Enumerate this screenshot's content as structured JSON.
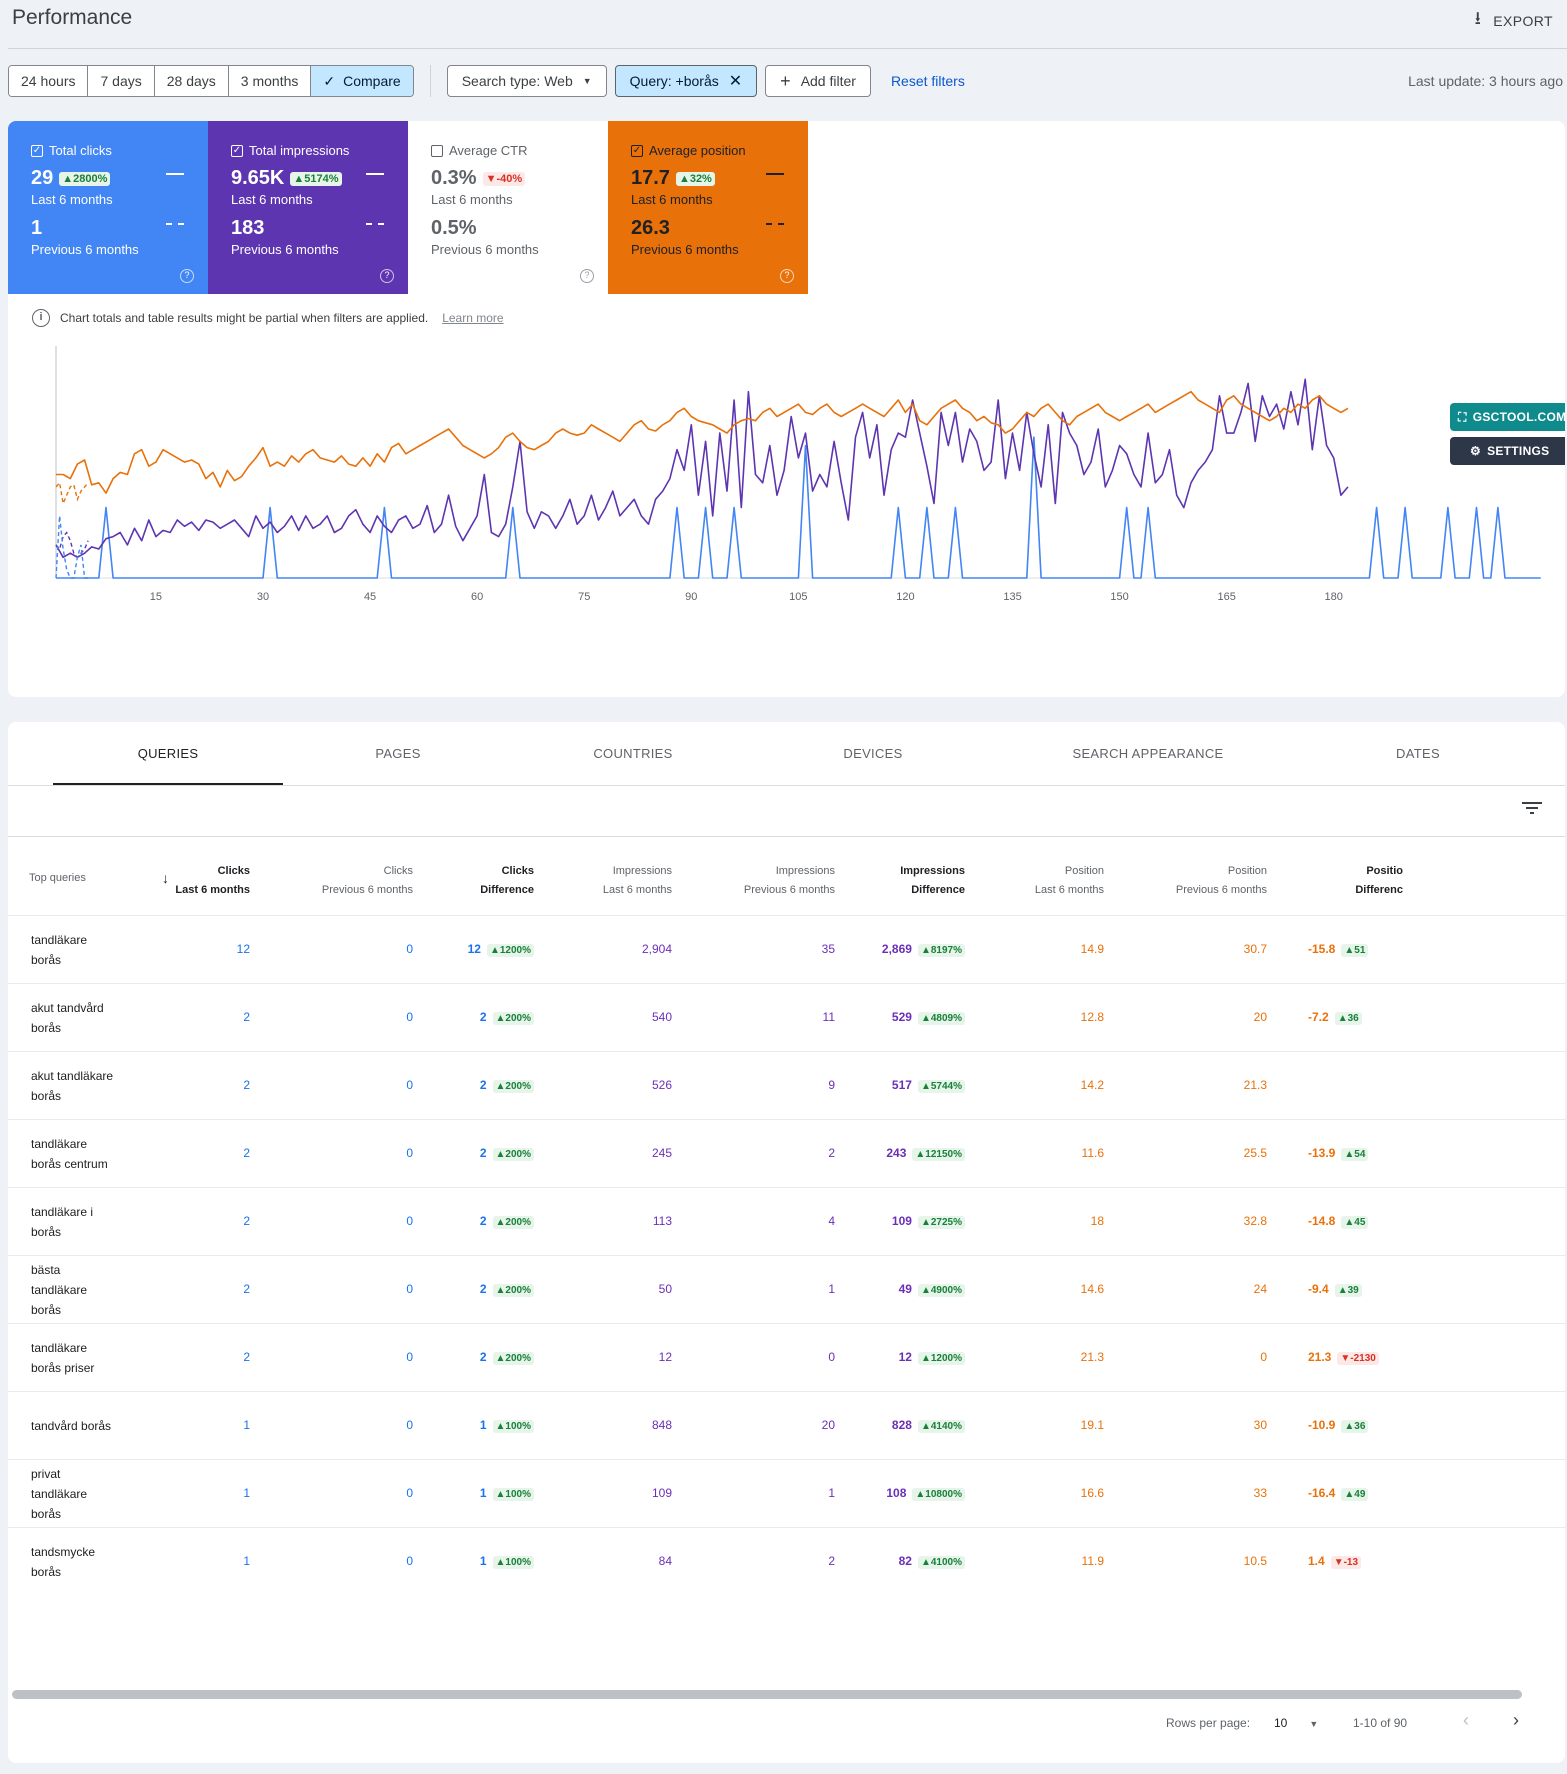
{
  "header": {
    "title": "Performance",
    "export_label": "EXPORT"
  },
  "filters": {
    "ranges": [
      "24 hours",
      "7 days",
      "28 days",
      "3 months"
    ],
    "compare_label": "Compare",
    "search_type": "Search type: Web",
    "query_chip": "Query: +borås",
    "add_filter": "Add filter",
    "reset": "Reset filters",
    "last_update": "Last update: 3 hours ago"
  },
  "metrics": {
    "clicks": {
      "label": "Total clicks",
      "value": "29",
      "change": "▲2800%",
      "period": "Last 6 months",
      "prev_value": "1",
      "prev_period": "Previous 6 months",
      "color": "#4285f4"
    },
    "impressions": {
      "label": "Total impressions",
      "value": "9.65K",
      "change": "▲5174%",
      "period": "Last 6 months",
      "prev_value": "183",
      "prev_period": "Previous 6 months",
      "color": "#5e35b1"
    },
    "ctr": {
      "label": "Average CTR",
      "value": "0.3%",
      "change": "▼-40%",
      "period": "Last 6 months",
      "prev_value": "0.5%",
      "prev_period": "Previous 6 months"
    },
    "position": {
      "label": "Average position",
      "value": "17.7",
      "change": "▲32%",
      "period": "Last 6 months",
      "prev_value": "26.3",
      "prev_period": "Previous 6 months",
      "color": "#e8710a"
    }
  },
  "notice": {
    "text": "Chart totals and table results might be partial when filters are applied.",
    "link": "Learn more"
  },
  "overlay": {
    "gsctool": "GSCTOOL.COM",
    "settings": "SETTINGS"
  },
  "chart_data": {
    "type": "line",
    "x_ticks": [
      "15",
      "30",
      "45",
      "60",
      "75",
      "90",
      "105",
      "120",
      "135",
      "150",
      "165",
      "180"
    ],
    "x_range": [
      1,
      182
    ],
    "grid": false,
    "series": [
      {
        "key": "position",
        "color": "#e8710a",
        "values": [
          50,
          50,
          48,
          55,
          57,
          45,
          46,
          41,
          48,
          51,
          50,
          60,
          62,
          54,
          56,
          62,
          60,
          58,
          56,
          57,
          55,
          48,
          51,
          44,
          52,
          47,
          49,
          54,
          58,
          63,
          54,
          56,
          54,
          59,
          56,
          60,
          62,
          58,
          57,
          56,
          59,
          55,
          54,
          58,
          54,
          60,
          56,
          63,
          65,
          60,
          62,
          64,
          66,
          68,
          70,
          72,
          68,
          64,
          62,
          60,
          58,
          60,
          63,
          68,
          70,
          66,
          63,
          62,
          64,
          66,
          70,
          72,
          70,
          69,
          70,
          74,
          72,
          70,
          68,
          66,
          70,
          74,
          76,
          72,
          71,
          74,
          76,
          80,
          82,
          78,
          76,
          75,
          74,
          72,
          70,
          74,
          76,
          77,
          76,
          80,
          82,
          78,
          80,
          82,
          84,
          80,
          79,
          82,
          84,
          80,
          78,
          80,
          82,
          84,
          82,
          80,
          78,
          82,
          86,
          80,
          84,
          76,
          74,
          78,
          82,
          84,
          86,
          82,
          80,
          76,
          78,
          75,
          74,
          70,
          72,
          76,
          80,
          78,
          82,
          84,
          80,
          76,
          74,
          78,
          80,
          82,
          84,
          80,
          78,
          76,
          78,
          80,
          82,
          84,
          80,
          82,
          84,
          86,
          88,
          90,
          86,
          84,
          82,
          80,
          86,
          88,
          84,
          82,
          80,
          78,
          76,
          78,
          82,
          80,
          84,
          82,
          86,
          88,
          84,
          82,
          80,
          82
        ]
      },
      {
        "key": "impressions",
        "color": "#5e35b1",
        "values": [
          16,
          10,
          12,
          10,
          12,
          15,
          14,
          19,
          20,
          22,
          16,
          24,
          18,
          28,
          20,
          23,
          22,
          28,
          25,
          27,
          23,
          28,
          27,
          24,
          26,
          28,
          24,
          20,
          30,
          24,
          27,
          22,
          25,
          30,
          23,
          30,
          24,
          26,
          30,
          22,
          24,
          30,
          33,
          26,
          22,
          30,
          25,
          22,
          28,
          30,
          24,
          26,
          35,
          22,
          26,
          40,
          25,
          18,
          24,
          30,
          50,
          22,
          20,
          26,
          44,
          66,
          32,
          24,
          32,
          30,
          24,
          30,
          38,
          26,
          30,
          40,
          28,
          34,
          42,
          30,
          34,
          38,
          30,
          26,
          38,
          42,
          48,
          62,
          52,
          74,
          40,
          66,
          30,
          70,
          42,
          86,
          34,
          90,
          50,
          46,
          64,
          40,
          52,
          78,
          58,
          70,
          42,
          50,
          44,
          66,
          46,
          28,
          68,
          80,
          58,
          74,
          40,
          62,
          70,
          68,
          86,
          70,
          54,
          36,
          80,
          64,
          80,
          56,
          72,
          66,
          52,
          56,
          86,
          48,
          70,
          52,
          80,
          60,
          44,
          74,
          36,
          80,
          70,
          64,
          50,
          56,
          72,
          44,
          52,
          64,
          60,
          50,
          44,
          70,
          46,
          50,
          62,
          40,
          34,
          46,
          52,
          56,
          62,
          88,
          70,
          70,
          80,
          94,
          66,
          88,
          78,
          84,
          72,
          90,
          74,
          96,
          62,
          88,
          64,
          58,
          40,
          44
        ]
      },
      {
        "key": "clicks",
        "color": "#4285f4",
        "values": [
          0,
          0,
          0,
          0,
          0,
          0,
          0,
          34,
          0,
          0,
          0,
          0,
          0,
          0,
          0,
          0,
          0,
          0,
          0,
          0,
          0,
          0,
          0,
          0,
          0,
          0,
          0,
          0,
          0,
          0,
          34,
          0,
          0,
          0,
          0,
          0,
          0,
          0,
          0,
          0,
          0,
          0,
          0,
          0,
          0,
          0,
          34,
          0,
          0,
          0,
          0,
          0,
          0,
          0,
          0,
          0,
          0,
          0,
          0,
          0,
          0,
          0,
          0,
          0,
          34,
          0,
          0,
          0,
          0,
          0,
          0,
          0,
          0,
          0,
          0,
          0,
          0,
          0,
          0,
          0,
          0,
          0,
          0,
          0,
          0,
          0,
          0,
          34,
          0,
          0,
          0,
          34,
          0,
          0,
          0,
          34,
          0,
          0,
          0,
          0,
          0,
          0,
          0,
          0,
          0,
          64,
          0,
          0,
          0,
          0,
          0,
          0,
          0,
          0,
          0,
          0,
          0,
          0,
          34,
          0,
          0,
          0,
          34,
          0,
          0,
          0,
          34,
          0,
          0,
          0,
          0,
          0,
          0,
          0,
          0,
          0,
          0,
          68,
          0,
          0,
          0,
          0,
          0,
          0,
          0,
          0,
          0,
          0,
          0,
          0,
          34,
          0,
          0,
          34,
          0,
          0,
          0,
          0,
          0,
          0,
          0,
          0,
          0,
          0,
          0,
          0,
          0,
          0,
          0,
          0,
          0,
          0,
          0,
          0,
          0,
          0,
          0,
          0,
          0,
          0,
          0,
          0,
          0,
          0,
          0,
          34,
          0,
          0,
          0,
          34,
          0,
          0,
          0,
          0,
          0,
          34,
          0,
          0,
          0,
          34,
          0,
          0,
          34,
          0,
          0,
          0,
          0,
          0,
          0
        ]
      }
    ],
    "prev_series_note": "",
    "unit_y": ""
  },
  "tabs": [
    "QUERIES",
    "PAGES",
    "COUNTRIES",
    "DEVICES",
    "SEARCH APPEARANCE",
    "DATES"
  ],
  "table": {
    "headers": [
      {
        "l1": "Top queries",
        "l2": ""
      },
      {
        "l1": "Clicks",
        "l2": "Last 6 months"
      },
      {
        "l1": "Clicks",
        "l2": "Previous 6 months"
      },
      {
        "l1": "Clicks",
        "l2": "Difference"
      },
      {
        "l1": "Impressions",
        "l2": "Last 6 months"
      },
      {
        "l1": "Impressions",
        "l2": "Previous 6 months"
      },
      {
        "l1": "Impressions",
        "l2": "Difference"
      },
      {
        "l1": "Position",
        "l2": "Last 6 months"
      },
      {
        "l1": "Position",
        "l2": "Previous 6 months"
      },
      {
        "l1": "Positio",
        "l2": "Differenc"
      }
    ],
    "rows": [
      {
        "q": [
          "tandläkare",
          "borås"
        ],
        "c": "12",
        "cp": "0",
        "cd": "12",
        "cdp": "▲1200%",
        "i": "2,904",
        "ip": "35",
        "id": "2,869",
        "idp": "▲8197%",
        "p": "14.9",
        "pp": "30.7",
        "pd": "-15.8",
        "pdp": "▲51",
        "neg": false
      },
      {
        "q": [
          "akut tandvård",
          "borås"
        ],
        "c": "2",
        "cp": "0",
        "cd": "2",
        "cdp": "▲200%",
        "i": "540",
        "ip": "11",
        "id": "529",
        "idp": "▲4809%",
        "p": "12.8",
        "pp": "20",
        "pd": "-7.2",
        "pdp": "▲36",
        "neg": false
      },
      {
        "q": [
          "akut tandläkare",
          "borås"
        ],
        "c": "2",
        "cp": "0",
        "cd": "2",
        "cdp": "▲200%",
        "i": "526",
        "ip": "9",
        "id": "517",
        "idp": "▲5744%",
        "p": "14.2",
        "pp": "21.3",
        "pd": "",
        "pdp": "",
        "neg": false
      },
      {
        "q": [
          "tandläkare",
          "borås centrum"
        ],
        "c": "2",
        "cp": "0",
        "cd": "2",
        "cdp": "▲200%",
        "i": "245",
        "ip": "2",
        "id": "243",
        "idp": "▲12150%",
        "p": "11.6",
        "pp": "25.5",
        "pd": "-13.9",
        "pdp": "▲54",
        "neg": false
      },
      {
        "q": [
          "tandläkare i",
          "borås"
        ],
        "c": "2",
        "cp": "0",
        "cd": "2",
        "cdp": "▲200%",
        "i": "113",
        "ip": "4",
        "id": "109",
        "idp": "▲2725%",
        "p": "18",
        "pp": "32.8",
        "pd": "-14.8",
        "pdp": "▲45",
        "neg": false
      },
      {
        "q": [
          "bästa",
          "tandläkare",
          "borås"
        ],
        "c": "2",
        "cp": "0",
        "cd": "2",
        "cdp": "▲200%",
        "i": "50",
        "ip": "1",
        "id": "49",
        "idp": "▲4900%",
        "p": "14.6",
        "pp": "24",
        "pd": "-9.4",
        "pdp": "▲39",
        "neg": false
      },
      {
        "q": [
          "tandläkare",
          "borås priser"
        ],
        "c": "2",
        "cp": "0",
        "cd": "2",
        "cdp": "▲200%",
        "i": "12",
        "ip": "0",
        "id": "12",
        "idp": "▲1200%",
        "p": "21.3",
        "pp": "0",
        "pd": "21.3",
        "pdp": "▼-2130",
        "neg": true
      },
      {
        "q": [
          "tandvård borås"
        ],
        "c": "1",
        "cp": "0",
        "cd": "1",
        "cdp": "▲100%",
        "i": "848",
        "ip": "20",
        "id": "828",
        "idp": "▲4140%",
        "p": "19.1",
        "pp": "30",
        "pd": "-10.9",
        "pdp": "▲36",
        "neg": false
      },
      {
        "q": [
          "privat",
          "tandläkare",
          "borås"
        ],
        "c": "1",
        "cp": "0",
        "cd": "1",
        "cdp": "▲100%",
        "i": "109",
        "ip": "1",
        "id": "108",
        "idp": "▲10800%",
        "p": "16.6",
        "pp": "33",
        "pd": "-16.4",
        "pdp": "▲49",
        "neg": false
      },
      {
        "q": [
          "tandsmycke",
          "borås"
        ],
        "c": "1",
        "cp": "0",
        "cd": "1",
        "cdp": "▲100%",
        "i": "84",
        "ip": "2",
        "id": "82",
        "idp": "▲4100%",
        "p": "11.9",
        "pp": "10.5",
        "pd": "1.4",
        "pdp": "▼-13",
        "neg": true
      }
    ]
  },
  "footer": {
    "rows_label": "Rows per page:",
    "rows_value": "10",
    "range": "1-10 of 90"
  }
}
